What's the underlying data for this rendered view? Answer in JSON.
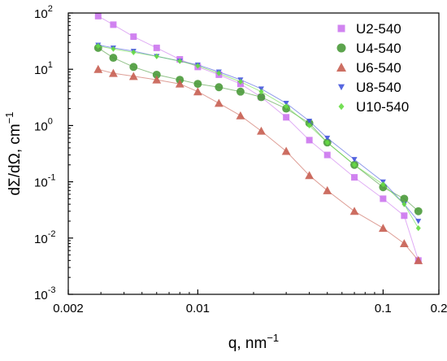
{
  "chart_data": {
    "type": "scatter",
    "xscale": "log",
    "yscale": "log",
    "xlim": [
      0.002,
      0.2
    ],
    "ylim": [
      0.001,
      100
    ],
    "xlabel": "q, nm",
    "xlabel_sup": "−1",
    "ylabel": "dΣ/dΩ, cm",
    "ylabel_sup": "−1",
    "xticks": [
      {
        "value": 0.002,
        "label": "0.002"
      },
      {
        "value": 0.01,
        "label": "0.01"
      },
      {
        "value": 0.1,
        "label": "0.1"
      },
      {
        "value": 0.2,
        "label": "0.2"
      }
    ],
    "yticks": [
      {
        "value": 0.001,
        "label": "10",
        "sup": "-3"
      },
      {
        "value": 0.01,
        "label": "10",
        "sup": "-2"
      },
      {
        "value": 0.1,
        "label": "10",
        "sup": "-1"
      },
      {
        "value": 1,
        "label": "10",
        "sup": "0"
      },
      {
        "value": 10,
        "label": "10",
        "sup": "1"
      },
      {
        "value": 100,
        "label": "10",
        "sup": "2"
      }
    ],
    "grid": false,
    "legend_position": "top-right",
    "series": [
      {
        "name": "U2-540",
        "marker": "square",
        "color": "#cc77ee",
        "x": [
          0.0029,
          0.0035,
          0.0045,
          0.006,
          0.008,
          0.01,
          0.013,
          0.017,
          0.022,
          0.03,
          0.04,
          0.05,
          0.07,
          0.1,
          0.13,
          0.155
        ],
        "y": [
          88,
          62,
          38,
          24,
          15,
          11,
          8,
          5.5,
          3.2,
          1.4,
          0.55,
          0.3,
          0.12,
          0.05,
          0.025,
          0.004
        ]
      },
      {
        "name": "U4-540",
        "marker": "circle",
        "color": "#4a9a3a",
        "x": [
          0.0029,
          0.0035,
          0.0045,
          0.006,
          0.008,
          0.01,
          0.013,
          0.017,
          0.022,
          0.03,
          0.04,
          0.05,
          0.07,
          0.1,
          0.13,
          0.155
        ],
        "y": [
          24,
          16,
          11,
          8,
          6.5,
          5.5,
          4.8,
          4,
          3.2,
          2,
          1.1,
          0.5,
          0.2,
          0.08,
          0.05,
          0.03
        ]
      },
      {
        "name": "U6-540",
        "marker": "triangle-up",
        "color": "#c85f52",
        "x": [
          0.0029,
          0.0035,
          0.0045,
          0.006,
          0.008,
          0.01,
          0.013,
          0.017,
          0.022,
          0.03,
          0.04,
          0.05,
          0.07,
          0.1,
          0.13,
          0.155
        ],
        "y": [
          10,
          8.5,
          7.5,
          6.5,
          5.5,
          4,
          2.5,
          1.5,
          0.8,
          0.35,
          0.13,
          0.07,
          0.03,
          0.015,
          0.008,
          0.004
        ]
      },
      {
        "name": "U8-540",
        "marker": "triangle-down",
        "color": "#4455dd",
        "x": [
          0.0029,
          0.0035,
          0.0045,
          0.006,
          0.008,
          0.01,
          0.013,
          0.017,
          0.022,
          0.03,
          0.04,
          0.05,
          0.07,
          0.1,
          0.13,
          0.155
        ],
        "y": [
          27,
          24,
          21,
          17,
          14,
          12,
          9,
          6.5,
          4.5,
          2.5,
          1.2,
          0.6,
          0.25,
          0.1,
          0.04,
          0.02
        ]
      },
      {
        "name": "U10-540",
        "marker": "diamond",
        "color": "#66dd44",
        "x": [
          0.0029,
          0.0035,
          0.0045,
          0.006,
          0.008,
          0.01,
          0.013,
          0.017,
          0.022,
          0.03,
          0.04,
          0.05,
          0.07,
          0.1,
          0.13,
          0.155
        ],
        "y": [
          26,
          23,
          20,
          17,
          14,
          11.5,
          8.5,
          6,
          4,
          2.2,
          1,
          0.5,
          0.2,
          0.09,
          0.04,
          0.015
        ]
      }
    ]
  }
}
